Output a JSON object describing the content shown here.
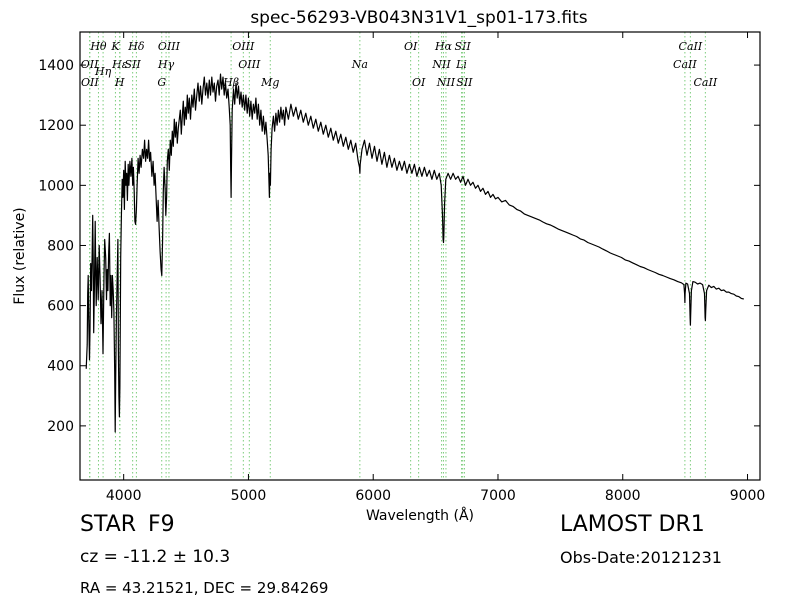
{
  "chart_data": {
    "type": "line",
    "title": "spec-56293-VB043N31V1_sp01-173.fits",
    "xlabel": "Wavelength (Å)",
    "ylabel": "Flux (relative)",
    "xlim": [
      3650,
      9100
    ],
    "ylim": [
      20,
      1510
    ],
    "x_ticks": [
      4000,
      5000,
      6000,
      7000,
      8000,
      9000
    ],
    "y_ticks": [
      200,
      400,
      600,
      800,
      1000,
      1200,
      1400
    ],
    "grid": false,
    "series_color": "#000000",
    "line_color": "#7ccc7c",
    "lines": [
      {
        "label": "Hθ",
        "x": 3798,
        "tier": 1
      },
      {
        "label": "K",
        "x": 3934,
        "tier": 1
      },
      {
        "label": "Hδ",
        "x": 4102,
        "tier": 1
      },
      {
        "label": "OIII",
        "x": 4363,
        "tier": 1
      },
      {
        "label": "OIII",
        "x": 4959,
        "tier": 1
      },
      {
        "label": "OI",
        "x": 6300,
        "tier": 1
      },
      {
        "label": "Hα",
        "x": 6563,
        "tier": 1
      },
      {
        "label": "SII",
        "x": 6717,
        "tier": 1
      },
      {
        "label": "CaII",
        "x": 8542,
        "tier": 1
      },
      {
        "label": "OII",
        "x": 3727,
        "tier": 2
      },
      {
        "label": "Hε",
        "x": 3970,
        "tier": 2
      },
      {
        "label": "SII",
        "x": 4072,
        "tier": 2
      },
      {
        "label": "Hγ",
        "x": 4340,
        "tier": 2
      },
      {
        "label": "OIII",
        "x": 5007,
        "tier": 2
      },
      {
        "label": "Na",
        "x": 5893,
        "tier": 2
      },
      {
        "label": "NII",
        "x": 6548,
        "tier": 2
      },
      {
        "label": "Li",
        "x": 6708,
        "tier": 2
      },
      {
        "label": "CaII",
        "x": 8498,
        "tier": 2
      },
      {
        "label": "OII",
        "x": 3729,
        "tier": 3
      },
      {
        "label": "Hη",
        "x": 3835,
        "tier": 2.4
      },
      {
        "label": "H",
        "x": 3968,
        "tier": 3
      },
      {
        "label": "G",
        "x": 4305,
        "tier": 3
      },
      {
        "label": "Hβ",
        "x": 4861,
        "tier": 3
      },
      {
        "label": "Mg",
        "x": 5175,
        "tier": 3
      },
      {
        "label": "OI",
        "x": 6364,
        "tier": 3
      },
      {
        "label": "NII",
        "x": 6583,
        "tier": 3
      },
      {
        "label": "SII",
        "x": 6731,
        "tier": 3
      },
      {
        "label": "CaII",
        "x": 8662,
        "tier": 3
      }
    ],
    "spectrum": [
      [
        3700,
        390
      ],
      [
        3708,
        470
      ],
      [
        3712,
        640
      ],
      [
        3716,
        700
      ],
      [
        3720,
        560
      ],
      [
        3726,
        420
      ],
      [
        3730,
        520
      ],
      [
        3736,
        740
      ],
      [
        3742,
        650
      ],
      [
        3748,
        780
      ],
      [
        3752,
        900
      ],
      [
        3756,
        760
      ],
      [
        3760,
        510
      ],
      [
        3766,
        680
      ],
      [
        3772,
        880
      ],
      [
        3776,
        720
      ],
      [
        3780,
        600
      ],
      [
        3788,
        760
      ],
      [
        3796,
        620
      ],
      [
        3804,
        800
      ],
      [
        3810,
        700
      ],
      [
        3818,
        540
      ],
      [
        3826,
        650
      ],
      [
        3834,
        440
      ],
      [
        3842,
        700
      ],
      [
        3848,
        820
      ],
      [
        3856,
        760
      ],
      [
        3862,
        620
      ],
      [
        3868,
        720
      ],
      [
        3874,
        650
      ],
      [
        3880,
        780
      ],
      [
        3886,
        840
      ],
      [
        3892,
        600
      ],
      [
        3898,
        700
      ],
      [
        3904,
        560
      ],
      [
        3910,
        700
      ],
      [
        3916,
        650
      ],
      [
        3922,
        580
      ],
      [
        3928,
        380
      ],
      [
        3932,
        180
      ],
      [
        3936,
        360
      ],
      [
        3942,
        560
      ],
      [
        3948,
        700
      ],
      [
        3954,
        820
      ],
      [
        3958,
        450
      ],
      [
        3962,
        300
      ],
      [
        3966,
        230
      ],
      [
        3970,
        330
      ],
      [
        3976,
        760
      ],
      [
        3982,
        900
      ],
      [
        3988,
        1020
      ],
      [
        3994,
        960
      ],
      [
        4000,
        1050
      ],
      [
        4006,
        920
      ],
      [
        4012,
        1080
      ],
      [
        4018,
        1000
      ],
      [
        4024,
        1040
      ],
      [
        4030,
        950
      ],
      [
        4036,
        1070
      ],
      [
        4042,
        1000
      ],
      [
        4050,
        1080
      ],
      [
        4058,
        1030
      ],
      [
        4066,
        1090
      ],
      [
        4072,
        1000
      ],
      [
        4078,
        1060
      ],
      [
        4084,
        980
      ],
      [
        4090,
        880
      ],
      [
        4096,
        870
      ],
      [
        4102,
        920
      ],
      [
        4108,
        1000
      ],
      [
        4116,
        1090
      ],
      [
        4124,
        1040
      ],
      [
        4132,
        1100
      ],
      [
        4140,
        1060
      ],
      [
        4150,
        1120
      ],
      [
        4160,
        1090
      ],
      [
        4168,
        1150
      ],
      [
        4176,
        1080
      ],
      [
        4184,
        1120
      ],
      [
        4192,
        1090
      ],
      [
        4200,
        1150
      ],
      [
        4208,
        1080
      ],
      [
        4216,
        1110
      ],
      [
        4226,
        1030
      ],
      [
        4236,
        1080
      ],
      [
        4244,
        1000
      ],
      [
        4252,
        1040
      ],
      [
        4260,
        960
      ],
      [
        4268,
        880
      ],
      [
        4276,
        950
      ],
      [
        4284,
        860
      ],
      [
        4292,
        780
      ],
      [
        4300,
        720
      ],
      [
        4306,
        700
      ],
      [
        4312,
        820
      ],
      [
        4318,
        980
      ],
      [
        4324,
        1060
      ],
      [
        4332,
        990
      ],
      [
        4338,
        900
      ],
      [
        4344,
        960
      ],
      [
        4350,
        1080
      ],
      [
        4358,
        1120
      ],
      [
        4366,
        1050
      ],
      [
        4374,
        1150
      ],
      [
        4382,
        1100
      ],
      [
        4390,
        1180
      ],
      [
        4398,
        1130
      ],
      [
        4406,
        1220
      ],
      [
        4414,
        1160
      ],
      [
        4422,
        1210
      ],
      [
        4430,
        1140
      ],
      [
        4438,
        1190
      ],
      [
        4446,
        1220
      ],
      [
        4454,
        1250
      ],
      [
        4462,
        1170
      ],
      [
        4470,
        1230
      ],
      [
        4478,
        1280
      ],
      [
        4486,
        1200
      ],
      [
        4494,
        1260
      ],
      [
        4502,
        1220
      ],
      [
        4510,
        1300
      ],
      [
        4518,
        1240
      ],
      [
        4526,
        1290
      ],
      [
        4536,
        1220
      ],
      [
        4546,
        1300
      ],
      [
        4556,
        1260
      ],
      [
        4566,
        1320
      ],
      [
        4576,
        1250
      ],
      [
        4586,
        1300
      ],
      [
        4596,
        1340
      ],
      [
        4606,
        1280
      ],
      [
        4616,
        1330
      ],
      [
        4626,
        1270
      ],
      [
        4636,
        1320
      ],
      [
        4646,
        1360
      ],
      [
        4656,
        1300
      ],
      [
        4666,
        1340
      ],
      [
        4676,
        1290
      ],
      [
        4686,
        1350
      ],
      [
        4696,
        1300
      ],
      [
        4706,
        1360
      ],
      [
        4716,
        1310
      ],
      [
        4726,
        1340
      ],
      [
        4736,
        1280
      ],
      [
        4746,
        1330
      ],
      [
        4756,
        1350
      ],
      [
        4766,
        1300
      ],
      [
        4776,
        1370
      ],
      [
        4786,
        1320
      ],
      [
        4796,
        1360
      ],
      [
        4806,
        1300
      ],
      [
        4816,
        1340
      ],
      [
        4826,
        1290
      ],
      [
        4836,
        1320
      ],
      [
        4846,
        1260
      ],
      [
        4854,
        1200
      ],
      [
        4858,
        1050
      ],
      [
        4861,
        960
      ],
      [
        4864,
        1080
      ],
      [
        4870,
        1250
      ],
      [
        4880,
        1320
      ],
      [
        4890,
        1270
      ],
      [
        4900,
        1340
      ],
      [
        4910,
        1290
      ],
      [
        4920,
        1330
      ],
      [
        4930,
        1270
      ],
      [
        4940,
        1310
      ],
      [
        4950,
        1260
      ],
      [
        4960,
        1300
      ],
      [
        4970,
        1250
      ],
      [
        4980,
        1300
      ],
      [
        4990,
        1240
      ],
      [
        5000,
        1290
      ],
      [
        5010,
        1230
      ],
      [
        5020,
        1280
      ],
      [
        5030,
        1220
      ],
      [
        5040,
        1270
      ],
      [
        5050,
        1240
      ],
      [
        5060,
        1290
      ],
      [
        5070,
        1220
      ],
      [
        5080,
        1270
      ],
      [
        5090,
        1200
      ],
      [
        5100,
        1250
      ],
      [
        5110,
        1180
      ],
      [
        5120,
        1230
      ],
      [
        5130,
        1170
      ],
      [
        5140,
        1210
      ],
      [
        5150,
        1150
      ],
      [
        5158,
        1100
      ],
      [
        5164,
        1020
      ],
      [
        5168,
        960
      ],
      [
        5172,
        1040
      ],
      [
        5176,
        1000
      ],
      [
        5182,
        1120
      ],
      [
        5190,
        1190
      ],
      [
        5200,
        1230
      ],
      [
        5210,
        1180
      ],
      [
        5220,
        1240
      ],
      [
        5230,
        1200
      ],
      [
        5240,
        1250
      ],
      [
        5250,
        1210
      ],
      [
        5260,
        1260
      ],
      [
        5270,
        1220
      ],
      [
        5280,
        1250
      ],
      [
        5290,
        1200
      ],
      [
        5300,
        1260
      ],
      [
        5320,
        1220
      ],
      [
        5340,
        1270
      ],
      [
        5360,
        1230
      ],
      [
        5380,
        1260
      ],
      [
        5400,
        1220
      ],
      [
        5420,
        1250
      ],
      [
        5440,
        1210
      ],
      [
        5460,
        1240
      ],
      [
        5480,
        1200
      ],
      [
        5500,
        1230
      ],
      [
        5520,
        1190
      ],
      [
        5540,
        1220
      ],
      [
        5560,
        1180
      ],
      [
        5580,
        1210
      ],
      [
        5600,
        1170
      ],
      [
        5620,
        1200
      ],
      [
        5640,
        1160
      ],
      [
        5660,
        1190
      ],
      [
        5680,
        1150
      ],
      [
        5700,
        1180
      ],
      [
        5720,
        1140
      ],
      [
        5740,
        1170
      ],
      [
        5760,
        1130
      ],
      [
        5780,
        1160
      ],
      [
        5800,
        1120
      ],
      [
        5820,
        1150
      ],
      [
        5840,
        1110
      ],
      [
        5860,
        1140
      ],
      [
        5880,
        1080
      ],
      [
        5890,
        1060
      ],
      [
        5893,
        1040
      ],
      [
        5896,
        1070
      ],
      [
        5910,
        1120
      ],
      [
        5930,
        1150
      ],
      [
        5950,
        1100
      ],
      [
        5970,
        1140
      ],
      [
        5990,
        1090
      ],
      [
        6010,
        1130
      ],
      [
        6030,
        1080
      ],
      [
        6050,
        1120
      ],
      [
        6070,
        1070
      ],
      [
        6090,
        1110
      ],
      [
        6110,
        1060
      ],
      [
        6130,
        1100
      ],
      [
        6150,
        1060
      ],
      [
        6170,
        1090
      ],
      [
        6190,
        1050
      ],
      [
        6210,
        1080
      ],
      [
        6230,
        1050
      ],
      [
        6250,
        1080
      ],
      [
        6270,
        1040
      ],
      [
        6290,
        1070
      ],
      [
        6310,
        1040
      ],
      [
        6330,
        1070
      ],
      [
        6350,
        1030
      ],
      [
        6370,
        1060
      ],
      [
        6390,
        1030
      ],
      [
        6410,
        1060
      ],
      [
        6430,
        1030
      ],
      [
        6450,
        1050
      ],
      [
        6470,
        1020
      ],
      [
        6490,
        1050
      ],
      [
        6510,
        1020
      ],
      [
        6530,
        1040
      ],
      [
        6545,
        1000
      ],
      [
        6555,
        900
      ],
      [
        6560,
        820
      ],
      [
        6563,
        810
      ],
      [
        6566,
        830
      ],
      [
        6572,
        940
      ],
      [
        6582,
        1020
      ],
      [
        6600,
        1040
      ],
      [
        6620,
        1020
      ],
      [
        6640,
        1040
      ],
      [
        6660,
        1020
      ],
      [
        6680,
        1030
      ],
      [
        6700,
        1010
      ],
      [
        6720,
        1030
      ],
      [
        6740,
        1000
      ],
      [
        6760,
        1020
      ],
      [
        6780,
        1000
      ],
      [
        6800,
        1010
      ],
      [
        6820,
        990
      ],
      [
        6840,
        1000
      ],
      [
        6860,
        980
      ],
      [
        6880,
        990
      ],
      [
        6900,
        970
      ],
      [
        6920,
        980
      ],
      [
        6940,
        960
      ],
      [
        6960,
        970
      ],
      [
        6980,
        955
      ],
      [
        7000,
        960
      ],
      [
        7030,
        945
      ],
      [
        7060,
        950
      ],
      [
        7090,
        935
      ],
      [
        7120,
        930
      ],
      [
        7150,
        920
      ],
      [
        7180,
        915
      ],
      [
        7210,
        905
      ],
      [
        7240,
        900
      ],
      [
        7270,
        895
      ],
      [
        7300,
        890
      ],
      [
        7330,
        885
      ],
      [
        7360,
        878
      ],
      [
        7390,
        872
      ],
      [
        7420,
        868
      ],
      [
        7450,
        862
      ],
      [
        7480,
        855
      ],
      [
        7510,
        850
      ],
      [
        7540,
        845
      ],
      [
        7570,
        840
      ],
      [
        7600,
        835
      ],
      [
        7630,
        830
      ],
      [
        7660,
        822
      ],
      [
        7690,
        818
      ],
      [
        7720,
        810
      ],
      [
        7750,
        805
      ],
      [
        7780,
        800
      ],
      [
        7810,
        795
      ],
      [
        7840,
        788
      ],
      [
        7870,
        782
      ],
      [
        7900,
        775
      ],
      [
        7930,
        770
      ],
      [
        7960,
        765
      ],
      [
        7990,
        760
      ],
      [
        8020,
        752
      ],
      [
        8050,
        748
      ],
      [
        8080,
        742
      ],
      [
        8110,
        736
      ],
      [
        8140,
        730
      ],
      [
        8170,
        726
      ],
      [
        8200,
        720
      ],
      [
        8230,
        715
      ],
      [
        8260,
        710
      ],
      [
        8290,
        704
      ],
      [
        8320,
        700
      ],
      [
        8350,
        695
      ],
      [
        8380,
        690
      ],
      [
        8410,
        686
      ],
      [
        8440,
        680
      ],
      [
        8470,
        676
      ],
      [
        8490,
        670
      ],
      [
        8496,
        640
      ],
      [
        8498,
        610
      ],
      [
        8500,
        640
      ],
      [
        8506,
        675
      ],
      [
        8520,
        672
      ],
      [
        8535,
        640
      ],
      [
        8540,
        560
      ],
      [
        8542,
        535
      ],
      [
        8544,
        560
      ],
      [
        8550,
        650
      ],
      [
        8562,
        680
      ],
      [
        8580,
        678
      ],
      [
        8600,
        672
      ],
      [
        8620,
        675
      ],
      [
        8640,
        670
      ],
      [
        8655,
        640
      ],
      [
        8660,
        560
      ],
      [
        8662,
        550
      ],
      [
        8665,
        580
      ],
      [
        8672,
        650
      ],
      [
        8690,
        668
      ],
      [
        8710,
        660
      ],
      [
        8730,
        664
      ],
      [
        8750,
        655
      ],
      [
        8770,
        658
      ],
      [
        8790,
        650
      ],
      [
        8810,
        652
      ],
      [
        8830,
        645
      ],
      [
        8850,
        645
      ],
      [
        8870,
        640
      ],
      [
        8890,
        638
      ],
      [
        8910,
        632
      ],
      [
        8930,
        630
      ],
      [
        8950,
        624
      ],
      [
        8970,
        622
      ]
    ]
  },
  "info": {
    "obj_class": "STAR",
    "obj_subclass": "F9",
    "survey": "LAMOST DR1",
    "cz": "cz = -11.2 ± 10.3",
    "obs_date": "Obs-Date:20121231",
    "radec": "RA = 43.21521, DEC = 29.84269"
  }
}
